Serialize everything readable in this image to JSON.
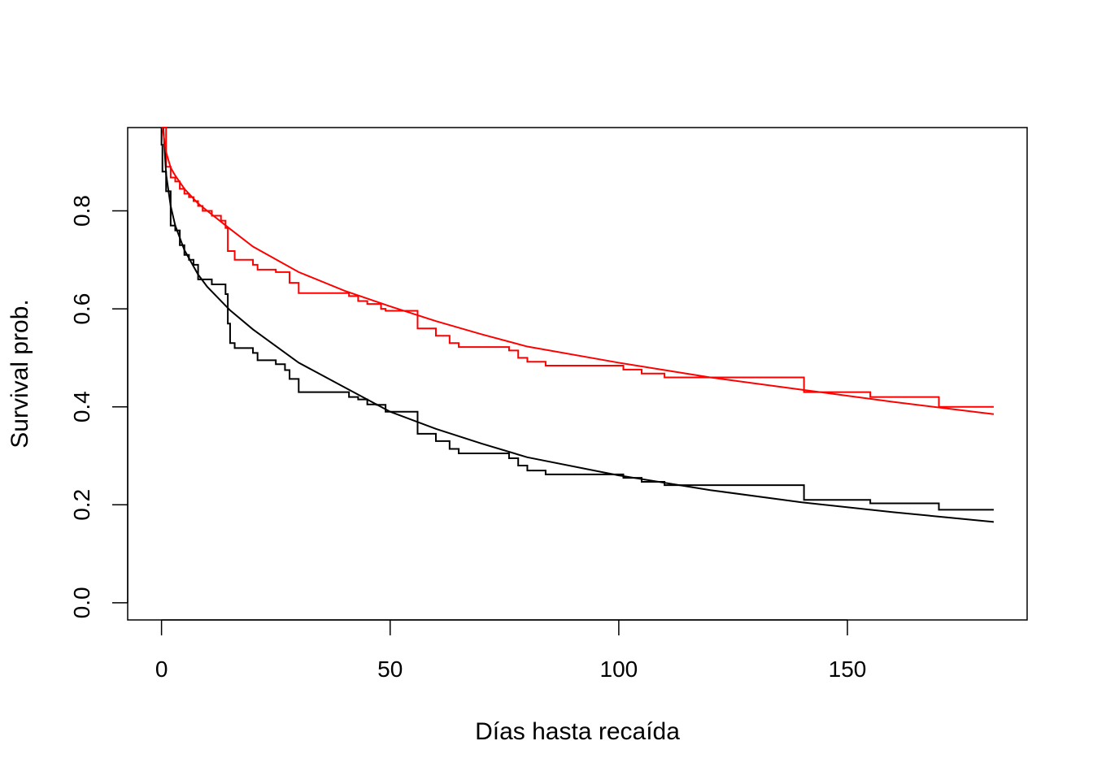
{
  "chart_data": {
    "type": "line",
    "title": "",
    "xlabel": "Días hasta recaída",
    "ylabel": "Survival prob.",
    "xlim": [
      -7.4,
      189.3
    ],
    "ylim": [
      -0.035,
      0.97
    ],
    "x_ticks": [
      0,
      50,
      100,
      150
    ],
    "x_tick_labels": [
      "0",
      "50",
      "100",
      "150"
    ],
    "y_ticks": [
      0.0,
      0.2,
      0.4,
      0.6,
      0.8
    ],
    "y_tick_labels": [
      "0.0",
      "0.2",
      "0.4",
      "0.6",
      "0.8"
    ],
    "grid": false,
    "legend": "none",
    "colors": {
      "black": "#000000",
      "red": "#ff0000"
    },
    "series": [
      {
        "style": "step",
        "color": "#000000",
        "points": [
          [
            0,
            0.97
          ],
          [
            0,
            0.935
          ],
          [
            0.2,
            0.88
          ],
          [
            1,
            0.84
          ],
          [
            2,
            0.77
          ],
          [
            3,
            0.76
          ],
          [
            4,
            0.73
          ],
          [
            5,
            0.71
          ],
          [
            6,
            0.7
          ],
          [
            7,
            0.69
          ],
          [
            8,
            0.66
          ],
          [
            11,
            0.65
          ],
          [
            14,
            0.63
          ],
          [
            14.5,
            0.57
          ],
          [
            15,
            0.53
          ],
          [
            16,
            0.52
          ],
          [
            20,
            0.51
          ],
          [
            21,
            0.495
          ],
          [
            24,
            0.495
          ],
          [
            25,
            0.487
          ],
          [
            27,
            0.475
          ],
          [
            28,
            0.457
          ],
          [
            30,
            0.43
          ],
          [
            40,
            0.43
          ],
          [
            41,
            0.42
          ],
          [
            43,
            0.415
          ],
          [
            45,
            0.405
          ],
          [
            47,
            0.404
          ],
          [
            49,
            0.39
          ],
          [
            56,
            0.345
          ],
          [
            60,
            0.33
          ],
          [
            63,
            0.314
          ],
          [
            65,
            0.305
          ],
          [
            75,
            0.305
          ],
          [
            76,
            0.295
          ],
          [
            78,
            0.28
          ],
          [
            80,
            0.27
          ],
          [
            84,
            0.262
          ],
          [
            100,
            0.262
          ],
          [
            101,
            0.255
          ],
          [
            105,
            0.247
          ],
          [
            110,
            0.24
          ],
          [
            140,
            0.24
          ],
          [
            140.5,
            0.21
          ],
          [
            155,
            0.203
          ],
          [
            170,
            0.19
          ],
          [
            182,
            0.19
          ]
        ]
      },
      {
        "style": "step",
        "color": "#ff0000",
        "points": [
          [
            0,
            0.97
          ],
          [
            1,
            0.89
          ],
          [
            2,
            0.868
          ],
          [
            3,
            0.86
          ],
          [
            4,
            0.845
          ],
          [
            5,
            0.835
          ],
          [
            6,
            0.828
          ],
          [
            7,
            0.82
          ],
          [
            8,
            0.81
          ],
          [
            9,
            0.8
          ],
          [
            11,
            0.79
          ],
          [
            13,
            0.78
          ],
          [
            14,
            0.765
          ],
          [
            14.5,
            0.718
          ],
          [
            16,
            0.7
          ],
          [
            20,
            0.69
          ],
          [
            21,
            0.68
          ],
          [
            25,
            0.675
          ],
          [
            28,
            0.653
          ],
          [
            30,
            0.632
          ],
          [
            40,
            0.632
          ],
          [
            41,
            0.626
          ],
          [
            43,
            0.616
          ],
          [
            45,
            0.61
          ],
          [
            48,
            0.6
          ],
          [
            49,
            0.596
          ],
          [
            56,
            0.56
          ],
          [
            60,
            0.545
          ],
          [
            63,
            0.53
          ],
          [
            65,
            0.522
          ],
          [
            75,
            0.522
          ],
          [
            76,
            0.515
          ],
          [
            78,
            0.5
          ],
          [
            80,
            0.492
          ],
          [
            84,
            0.484
          ],
          [
            100,
            0.484
          ],
          [
            101,
            0.476
          ],
          [
            105,
            0.468
          ],
          [
            110,
            0.46
          ],
          [
            140,
            0.46
          ],
          [
            140.5,
            0.43
          ],
          [
            155,
            0.42
          ],
          [
            170,
            0.4
          ],
          [
            182,
            0.4
          ]
        ]
      },
      {
        "style": "smooth",
        "color": "#000000",
        "points": [
          [
            0.4,
            0.97
          ],
          [
            1,
            0.875
          ],
          [
            2,
            0.81
          ],
          [
            3,
            0.77
          ],
          [
            5,
            0.72
          ],
          [
            8,
            0.67
          ],
          [
            10,
            0.645
          ],
          [
            15,
            0.597
          ],
          [
            20,
            0.558
          ],
          [
            30,
            0.49
          ],
          [
            40,
            0.44
          ],
          [
            50,
            0.39
          ],
          [
            60,
            0.355
          ],
          [
            70,
            0.325
          ],
          [
            80,
            0.297
          ],
          [
            100,
            0.26
          ],
          [
            120,
            0.23
          ],
          [
            140,
            0.205
          ],
          [
            160,
            0.185
          ],
          [
            182,
            0.165
          ]
        ]
      },
      {
        "style": "smooth",
        "color": "#ff0000",
        "points": [
          [
            0.2,
            0.97
          ],
          [
            1,
            0.92
          ],
          [
            2,
            0.888
          ],
          [
            3,
            0.872
          ],
          [
            5,
            0.845
          ],
          [
            8,
            0.815
          ],
          [
            10,
            0.8
          ],
          [
            15,
            0.763
          ],
          [
            20,
            0.727
          ],
          [
            30,
            0.675
          ],
          [
            40,
            0.637
          ],
          [
            50,
            0.605
          ],
          [
            60,
            0.575
          ],
          [
            70,
            0.548
          ],
          [
            80,
            0.523
          ],
          [
            100,
            0.49
          ],
          [
            120,
            0.46
          ],
          [
            140,
            0.435
          ],
          [
            160,
            0.41
          ],
          [
            182,
            0.385
          ]
        ]
      }
    ]
  }
}
